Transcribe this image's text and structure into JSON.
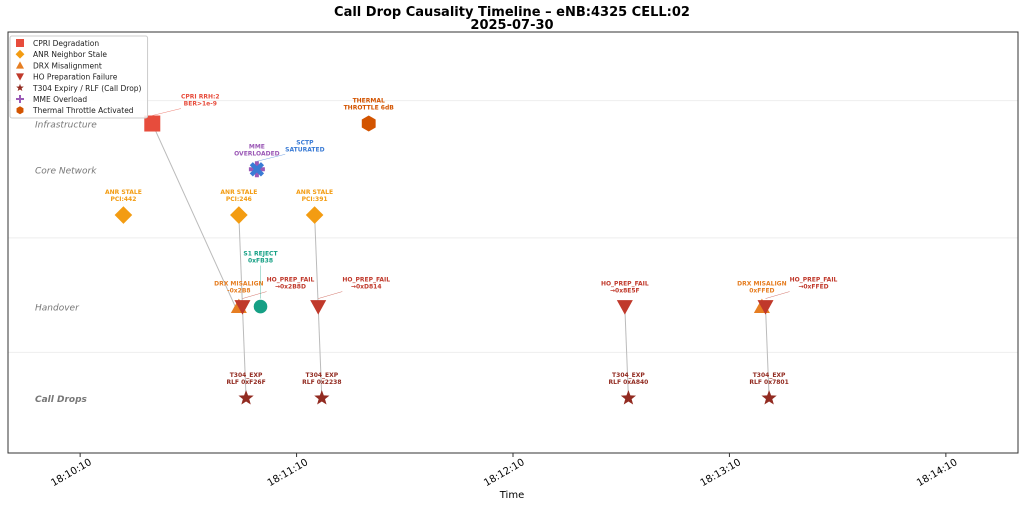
{
  "chart_data": {
    "type": "scatter",
    "title": "Call Drop Causality Timeline – eNB:4325 CELL:02",
    "subtitle": "2025-07-30",
    "xlabel": "Time",
    "xlim": [
      "18:09:50",
      "18:14:30"
    ],
    "ylim": [
      -0.6,
      4.0
    ],
    "xticks": [
      "18:10:10",
      "18:11:10",
      "18:12:10",
      "18:13:10",
      "18:14:10"
    ],
    "lanes": [
      {
        "name": "Infrastructure",
        "y": 3,
        "style": "italic"
      },
      {
        "name": "Core Network",
        "y": 2.5,
        "style": "italic"
      },
      {
        "name": "Handover",
        "y": 1,
        "style": "italic"
      },
      {
        "name": "Call Drops",
        "y": 0,
        "style": "bold-italic"
      }
    ],
    "lane_separators": [
      3.25,
      1.75,
      0.5
    ],
    "legend_position": "top-left",
    "legend": [
      {
        "name": "CPRI Degradation",
        "marker": "square",
        "color": "#e74c3c"
      },
      {
        "name": "ANR Neighbor Stale",
        "marker": "diamond",
        "color": "#f39c12"
      },
      {
        "name": "DRX Misalignment",
        "marker": "triangle-up",
        "color": "#e67e22"
      },
      {
        "name": "HO Preparation Failure",
        "marker": "triangle-down",
        "color": "#c0392b"
      },
      {
        "name": "T304 Expiry / RLF (Call Drop)",
        "marker": "star",
        "color": "#922b21"
      },
      {
        "name": "MME Overload",
        "marker": "plus",
        "color": "#9b59b6"
      },
      {
        "name": "Thermal Throttle Activated",
        "marker": "hexagon",
        "color": "#d35400"
      }
    ],
    "events": [
      {
        "t": "18:10:30",
        "y": 3,
        "marker": "square",
        "color": "#e74c3c",
        "label": [
          "CPRI RRH:2",
          "BER>1e-9"
        ]
      },
      {
        "t": "18:11:30",
        "y": 3,
        "marker": "hexagon",
        "color": "#d35400",
        "label": [
          "THERMAL",
          "THROTTLE 6dB"
        ]
      },
      {
        "t": "18:10:59",
        "y": 2.5,
        "marker": "plus",
        "color": "#9b59b6",
        "label": [
          "MME",
          "OVERLOADED"
        ]
      },
      {
        "t": "18:10:59",
        "y": 2.5,
        "marker": "x",
        "color": "#3a7bd5",
        "label": [
          "SCTP",
          "SATURATED"
        ]
      },
      {
        "t": "18:10:22",
        "y": 2,
        "marker": "diamond",
        "color": "#f39c12",
        "label": [
          "ANR STALE",
          "PCI:442"
        ]
      },
      {
        "t": "18:10:54",
        "y": 2,
        "marker": "diamond",
        "color": "#f39c12",
        "label": [
          "ANR STALE",
          "PCI:246"
        ]
      },
      {
        "t": "18:11:15",
        "y": 2,
        "marker": "diamond",
        "color": "#f39c12",
        "label": [
          "ANR STALE",
          "PCI:391"
        ]
      },
      {
        "t": "18:10:54",
        "y": 1,
        "marker": "triangle-up",
        "color": "#e67e22",
        "label": [
          "DRX MISALIGN",
          "-0x2B8"
        ]
      },
      {
        "t": "18:10:55",
        "y": 1,
        "marker": "triangle-down",
        "color": "#c0392b",
        "label": [
          "HO_PREP_FAIL",
          "→0x2B8D"
        ]
      },
      {
        "t": "18:11:00",
        "y": 1,
        "marker": "circle",
        "color": "#16a085",
        "label": [
          "S1 REJECT",
          "0xFB38"
        ]
      },
      {
        "t": "18:11:16",
        "y": 1,
        "marker": "triangle-down",
        "color": "#c0392b",
        "label": [
          "HO_PREP_FAIL",
          "→0xD814"
        ]
      },
      {
        "t": "18:12:41",
        "y": 1,
        "marker": "triangle-down",
        "color": "#c0392b",
        "label": [
          "HO_PREP_FAIL",
          "→0x8E5F"
        ]
      },
      {
        "t": "18:13:19",
        "y": 1,
        "marker": "triangle-up",
        "color": "#e67e22",
        "label": [
          "DRX MISALIGN",
          "0xFFED"
        ]
      },
      {
        "t": "18:13:20",
        "y": 1,
        "marker": "triangle-down",
        "color": "#c0392b",
        "label": [
          "HO_PREP_FAIL",
          "→0xFFED"
        ]
      },
      {
        "t": "18:10:56",
        "y": 0,
        "marker": "star",
        "color": "#922b21",
        "label": [
          "T304_EXP",
          "RLF 0xF26F"
        ]
      },
      {
        "t": "18:11:17",
        "y": 0,
        "marker": "star",
        "color": "#922b21",
        "label": [
          "T304_EXP",
          "RLF 0x2238"
        ]
      },
      {
        "t": "18:12:42",
        "y": 0,
        "marker": "star",
        "color": "#922b21",
        "label": [
          "T304_EXP",
          "RLF 0xA840"
        ]
      },
      {
        "t": "18:13:21",
        "y": 0,
        "marker": "star",
        "color": "#922b21",
        "label": [
          "T304_EXP",
          "RLF 0x7801"
        ]
      }
    ],
    "links": [
      [
        [
          "18:10:30",
          3
        ],
        [
          "18:10:53",
          1
        ]
      ],
      [
        [
          "18:10:54",
          2
        ],
        [
          "18:10:56",
          0
        ]
      ],
      [
        [
          "18:11:15",
          2
        ],
        [
          "18:11:16",
          1
        ]
      ],
      [
        [
          "18:11:16",
          1
        ],
        [
          "18:11:17",
          0
        ]
      ],
      [
        [
          "18:12:41",
          1
        ],
        [
          "18:12:42",
          0
        ]
      ],
      [
        [
          "18:13:20",
          1
        ],
        [
          "18:13:21",
          0
        ]
      ]
    ]
  }
}
